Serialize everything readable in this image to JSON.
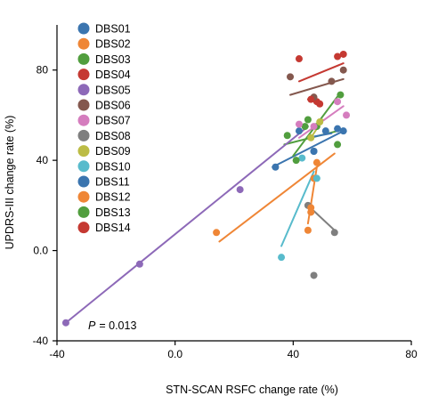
{
  "chart_data": {
    "type": "scatter",
    "xlabel": "STN-SCAN RSFC change rate (%)",
    "ylabel": "UPDRS-III change rate  (%)",
    "xlim": [
      -40,
      80
    ],
    "ylim": [
      -40,
      100
    ],
    "x_ticks": [
      "-40",
      "0.0",
      "40",
      "80"
    ],
    "y_ticks": [
      "-40",
      "0.0",
      "40",
      "80"
    ],
    "legend_position": "top-left",
    "annotation": {
      "p_label": "P",
      "p_value": "= 0.013"
    },
    "series": [
      {
        "name": "DBS01",
        "color": "#3b75af",
        "points": [
          [
            34,
            37
          ],
          [
            42,
            53
          ],
          [
            47,
            44
          ],
          [
            55,
            54
          ],
          [
            57,
            53
          ]
        ],
        "fit": [
          [
            33,
            37
          ],
          [
            57,
            53
          ]
        ]
      },
      {
        "name": "DBS02",
        "color": "#ef8636",
        "points": [
          [
            14,
            8
          ],
          [
            46,
            17
          ],
          [
            47,
            32
          ]
        ],
        "fit": [
          [
            15,
            4
          ],
          [
            54,
            43
          ]
        ]
      },
      {
        "name": "DBS03",
        "color": "#519e3e",
        "points": [
          [
            38,
            51
          ],
          [
            44,
            55
          ],
          [
            48,
            55
          ],
          [
            55,
            47
          ]
        ],
        "fit": [
          [
            37,
            47
          ],
          [
            55,
            53
          ]
        ]
      },
      {
        "name": "DBS04",
        "color": "#c53932",
        "points": [
          [
            42,
            85
          ],
          [
            48,
            66
          ],
          [
            55,
            86
          ],
          [
            57,
            87
          ]
        ],
        "fit": [
          [
            42,
            75
          ],
          [
            57,
            83
          ]
        ]
      },
      {
        "name": "DBS05",
        "color": "#8d69b8",
        "points": [
          [
            -37,
            -32
          ],
          [
            -12,
            -6
          ],
          [
            22,
            27
          ]
        ],
        "fit": [
          [
            -37,
            -32
          ],
          [
            45,
            55
          ]
        ]
      },
      {
        "name": "DBS06",
        "color": "#84584e",
        "points": [
          [
            39,
            77
          ],
          [
            47,
            68
          ],
          [
            53,
            75
          ],
          [
            57,
            80
          ]
        ],
        "fit": [
          [
            39,
            69
          ],
          [
            57,
            76
          ]
        ]
      },
      {
        "name": "DBS07",
        "color": "#d57dbe",
        "points": [
          [
            42,
            56
          ],
          [
            47,
            55
          ],
          [
            55,
            66
          ],
          [
            58,
            60
          ]
        ],
        "fit": [
          [
            42,
            50
          ],
          [
            57,
            64
          ]
        ]
      },
      {
        "name": "DBS08",
        "color": "#7f7f7f",
        "points": [
          [
            45,
            20
          ],
          [
            47,
            -11
          ],
          [
            54,
            8
          ]
        ],
        "fit": [
          [
            45,
            20
          ],
          [
            54,
            9
          ]
        ]
      },
      {
        "name": "DBS09",
        "color": "#bcbc45",
        "points": [
          [
            46,
            50
          ],
          [
            49,
            57
          ]
        ],
        "fit": [
          [
            46,
            50
          ],
          [
            50,
            58
          ]
        ]
      },
      {
        "name": "DBS10",
        "color": "#58bbcc",
        "points": [
          [
            36,
            -3
          ],
          [
            43,
            41
          ],
          [
            48,
            32
          ]
        ],
        "fit": [
          [
            36,
            2
          ],
          [
            47,
            35
          ]
        ]
      },
      {
        "name": "DBS11",
        "color": "#3b75af",
        "points": [
          [
            47,
            44
          ],
          [
            51,
            53
          ]
        ],
        "fit": [
          [
            45,
            50
          ],
          [
            53,
            52
          ]
        ]
      },
      {
        "name": "DBS12",
        "color": "#ef8636",
        "points": [
          [
            45,
            9
          ],
          [
            46,
            19
          ],
          [
            48,
            39
          ]
        ],
        "fit": [
          [
            45,
            12
          ],
          [
            48,
            37
          ]
        ]
      },
      {
        "name": "DBS13",
        "color": "#519e3e",
        "points": [
          [
            41,
            40
          ],
          [
            45,
            58
          ],
          [
            56,
            69
          ]
        ],
        "fit": [
          [
            40,
            42
          ],
          [
            56,
            70
          ]
        ]
      },
      {
        "name": "DBS14",
        "color": "#c53932",
        "points": [
          [
            46,
            67
          ],
          [
            49,
            65
          ]
        ],
        "fit": [
          [
            45,
            67
          ],
          [
            49,
            65
          ]
        ]
      }
    ]
  }
}
